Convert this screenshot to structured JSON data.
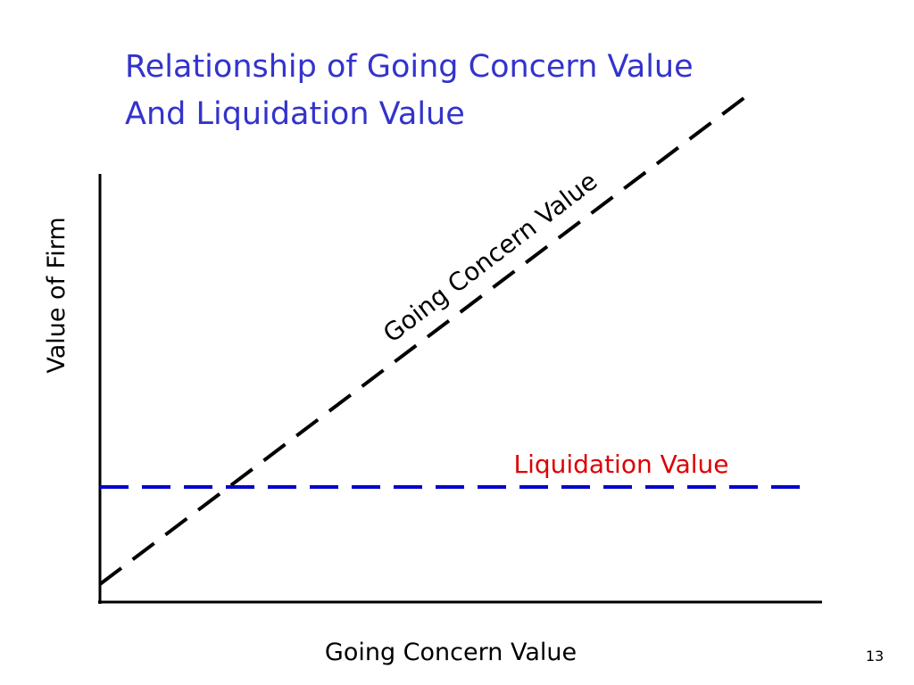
{
  "title": {
    "lines": [
      "Relationship of Going Concern Value",
      "And Liquidation Value"
    ]
  },
  "diagram": {
    "y_axis_label": "Value of Firm",
    "x_axis_label": "Going Concern Value",
    "lines": [
      {
        "label": "Going Concern Value"
      },
      {
        "label": "Liquidation Value"
      }
    ]
  },
  "footer": {
    "page_number": "13"
  }
}
